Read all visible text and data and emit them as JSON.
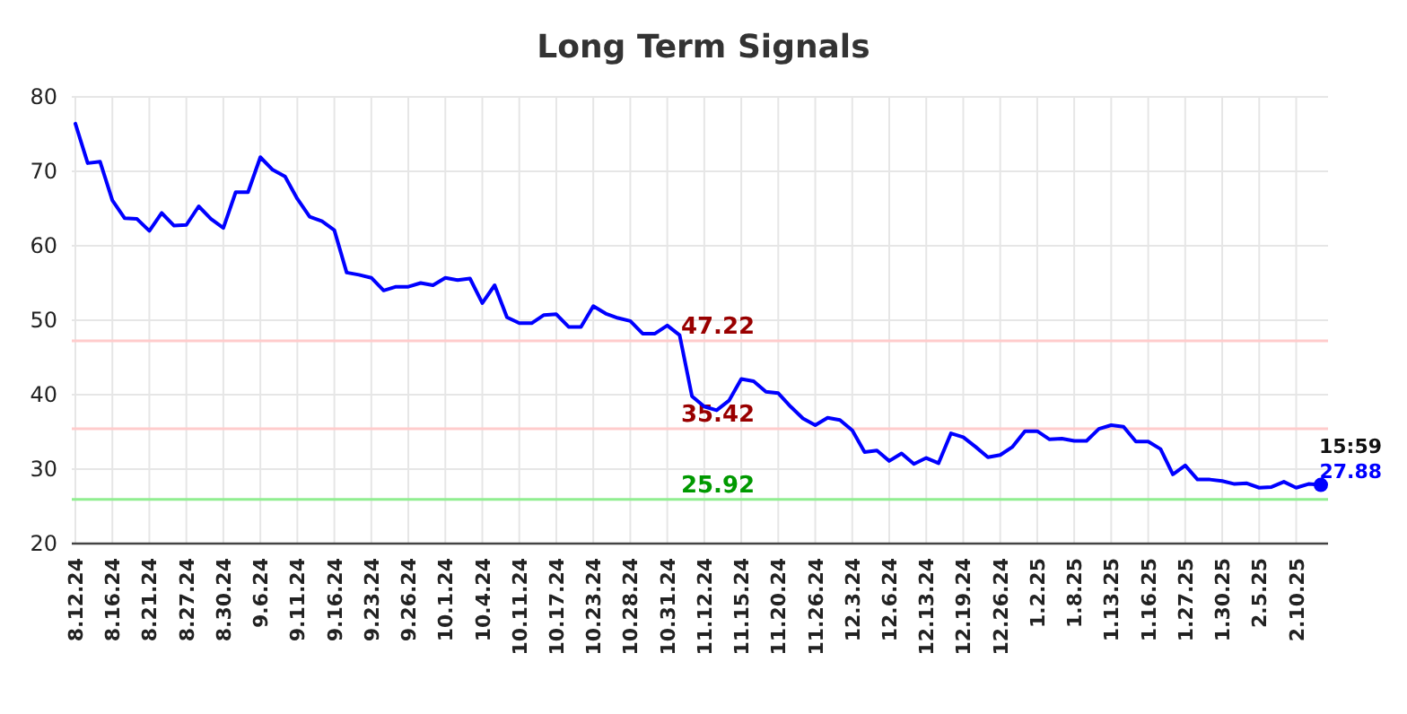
{
  "chart_data": {
    "type": "line",
    "title": "Long Term Signals",
    "categories": [
      "8.12.24",
      null,
      null,
      "8.16.24",
      null,
      null,
      "8.21.24",
      null,
      null,
      "8.27.24",
      null,
      null,
      "8.30.24",
      null,
      null,
      "9.6.24",
      null,
      null,
      "9.11.24",
      null,
      null,
      "9.16.24",
      null,
      null,
      "9.23.24",
      null,
      null,
      "9.26.24",
      null,
      null,
      "10.1.24",
      null,
      null,
      "10.4.24",
      null,
      null,
      "10.11.24",
      null,
      null,
      "10.17.24",
      null,
      null,
      "10.23.24",
      null,
      null,
      "10.28.24",
      null,
      null,
      "10.31.24",
      null,
      null,
      "11.12.24",
      null,
      null,
      "11.15.24",
      null,
      null,
      "11.20.24",
      null,
      null,
      "11.26.24",
      null,
      null,
      "12.3.24",
      null,
      null,
      "12.6.24",
      null,
      null,
      "12.13.24",
      null,
      null,
      "12.19.24",
      null,
      null,
      "12.26.24",
      null,
      null,
      "1.2.25",
      null,
      null,
      "1.8.25",
      null,
      null,
      "1.13.25",
      null,
      null,
      "1.16.25",
      null,
      null,
      "1.27.25",
      null,
      null,
      "1.30.25",
      null,
      null,
      "2.5.25",
      null,
      null,
      "2.10.25",
      null,
      null
    ],
    "series": [
      {
        "color": "#0000ff",
        "values": [
          76.4,
          71.1,
          71.3,
          66.1,
          63.7,
          63.6,
          62.0,
          64.4,
          62.7,
          62.8,
          65.3,
          63.6,
          62.4,
          67.2,
          67.2,
          71.9,
          70.2,
          69.3,
          66.3,
          63.9,
          63.3,
          62.1,
          56.4,
          56.1,
          55.7,
          54.0,
          54.5,
          54.5,
          55.0,
          54.7,
          55.7,
          55.4,
          55.6,
          52.3,
          54.7,
          50.4,
          49.6,
          49.6,
          50.7,
          50.8,
          49.1,
          49.1,
          51.9,
          50.9,
          50.3,
          49.9,
          48.2,
          48.2,
          49.3,
          48.0,
          39.8,
          38.4,
          37.9,
          39.2,
          42.1,
          41.8,
          40.4,
          40.2,
          38.4,
          36.8,
          35.9,
          36.9,
          36.6,
          35.2,
          32.3,
          32.5,
          31.1,
          32.1,
          30.7,
          31.5,
          30.8,
          34.8,
          34.3,
          33.0,
          31.6,
          31.9,
          33.0,
          35.1,
          35.1,
          34.0,
          34.1,
          33.8,
          33.8,
          35.4,
          35.9,
          35.7,
          33.7,
          33.7,
          32.7,
          29.3,
          30.5,
          28.6,
          28.6,
          28.4,
          28.0,
          28.1,
          27.5,
          27.6,
          28.3,
          27.5,
          28.0,
          27.88
        ],
        "value_labels": [
          null,
          null,
          null,
          null,
          null,
          null,
          null,
          null,
          null,
          null,
          null,
          null,
          null,
          null,
          null,
          null,
          null,
          null,
          null,
          null,
          null,
          null,
          null,
          null,
          null,
          null,
          null,
          null,
          null,
          null,
          null,
          null,
          null,
          null,
          null,
          null,
          null,
          null,
          null,
          null,
          null,
          null,
          null,
          null,
          null,
          null,
          null,
          null,
          null,
          null,
          null,
          null,
          null,
          null,
          null,
          null,
          null,
          null,
          null,
          null,
          null,
          null,
          null,
          null,
          null,
          null,
          null,
          null,
          null,
          null,
          null,
          null,
          null,
          null,
          null,
          null,
          null,
          null,
          null,
          null,
          null,
          null,
          null,
          null,
          null,
          null,
          null,
          null,
          null,
          null,
          null,
          null,
          null,
          null,
          null,
          null,
          null,
          null,
          null,
          null,
          null,
          "27.88"
        ]
      }
    ],
    "annotations": [
      "15:59"
    ],
    "ref_lines": [
      {
        "axis": "y",
        "value": 47.22,
        "label": "47.22",
        "color": "#ffcccc"
      },
      {
        "axis": "y",
        "value": 35.42,
        "label": "35.42",
        "color": "#ffcccc"
      },
      {
        "axis": "y",
        "value": 25.92,
        "label": "25.92",
        "color": "#90ee90"
      }
    ],
    "ylim": [
      20,
      80
    ],
    "yticks": [
      20,
      30,
      40,
      50,
      60,
      70,
      80
    ],
    "grid": true,
    "line_style": "solid"
  }
}
